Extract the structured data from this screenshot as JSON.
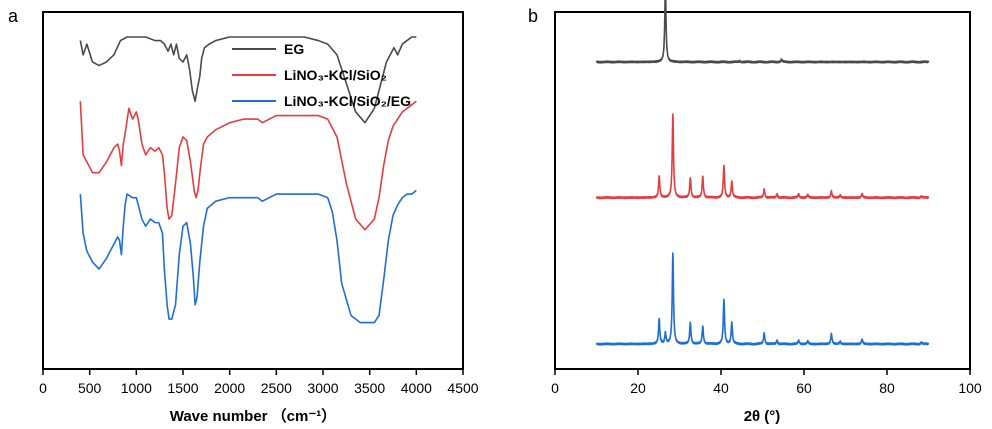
{
  "chart_data": [
    {
      "panel_label": "a",
      "type": "line",
      "xlabel": "Wave number （cm⁻¹）",
      "ylabel": "",
      "xlim": [
        0,
        4500
      ],
      "xticks": [
        0,
        500,
        1000,
        1500,
        2000,
        2500,
        3000,
        3500,
        4000,
        4500
      ],
      "ylim": [
        0,
        100
      ],
      "yticks": [],
      "grid": false,
      "legend_position": "top",
      "series": [
        {
          "name": "EG",
          "color": "#4a4a4a",
          "points": [
            [
              400,
              92
            ],
            [
              430,
              88
            ],
            [
              470,
              91
            ],
            [
              530,
              86
            ],
            [
              600,
              85
            ],
            [
              680,
              86
            ],
            [
              760,
              88
            ],
            [
              830,
              92
            ],
            [
              900,
              93
            ],
            [
              1000,
              93
            ],
            [
              1100,
              93
            ],
            [
              1200,
              92
            ],
            [
              1260,
              92
            ],
            [
              1300,
              91
            ],
            [
              1340,
              89
            ],
            [
              1370,
              91
            ],
            [
              1400,
              88
            ],
            [
              1430,
              91
            ],
            [
              1460,
              87
            ],
            [
              1500,
              86
            ],
            [
              1540,
              88
            ],
            [
              1570,
              84
            ],
            [
              1600,
              78
            ],
            [
              1630,
              75
            ],
            [
              1650,
              78
            ],
            [
              1680,
              82
            ],
            [
              1700,
              87
            ],
            [
              1730,
              90
            ],
            [
              1780,
              91
            ],
            [
              1850,
              92
            ],
            [
              2000,
              93
            ],
            [
              2200,
              93
            ],
            [
              2500,
              93
            ],
            [
              2800,
              93
            ],
            [
              2950,
              92
            ],
            [
              3050,
              91
            ],
            [
              3150,
              88
            ],
            [
              3250,
              80
            ],
            [
              3350,
              72
            ],
            [
              3450,
              69
            ],
            [
              3550,
              73
            ],
            [
              3620,
              80
            ],
            [
              3680,
              86
            ],
            [
              3720,
              88
            ],
            [
              3760,
              90
            ],
            [
              3800,
              88
            ],
            [
              3850,
              91
            ],
            [
              3900,
              92
            ],
            [
              3950,
              93
            ],
            [
              4000,
              93
            ]
          ]
        },
        {
          "name": "LiNO₃-KCl/SiO₂",
          "color": "#e43d40",
          "points": [
            [
              400,
              75
            ],
            [
              430,
              60
            ],
            [
              470,
              58
            ],
            [
              530,
              55
            ],
            [
              600,
              55
            ],
            [
              680,
              58
            ],
            [
              760,
              62
            ],
            [
              800,
              63
            ],
            [
              820,
              61
            ],
            [
              840,
              57
            ],
            [
              860,
              63
            ],
            [
              880,
              66
            ],
            [
              920,
              73
            ],
            [
              960,
              70
            ],
            [
              1000,
              72
            ],
            [
              1020,
              70
            ],
            [
              1060,
              63
            ],
            [
              1100,
              60
            ],
            [
              1150,
              62
            ],
            [
              1200,
              61
            ],
            [
              1240,
              62
            ],
            [
              1280,
              60
            ],
            [
              1300,
              55
            ],
            [
              1330,
              45
            ],
            [
              1350,
              42
            ],
            [
              1380,
              43
            ],
            [
              1420,
              52
            ],
            [
              1460,
              62
            ],
            [
              1500,
              65
            ],
            [
              1540,
              64
            ],
            [
              1580,
              58
            ],
            [
              1620,
              50
            ],
            [
              1640,
              48
            ],
            [
              1660,
              50
            ],
            [
              1690,
              57
            ],
            [
              1720,
              63
            ],
            [
              1760,
              65
            ],
            [
              1850,
              67
            ],
            [
              2000,
              69
            ],
            [
              2150,
              70
            ],
            [
              2300,
              70
            ],
            [
              2350,
              69
            ],
            [
              2500,
              71
            ],
            [
              2800,
              71
            ],
            [
              2950,
              71
            ],
            [
              3050,
              70
            ],
            [
              3150,
              65
            ],
            [
              3250,
              52
            ],
            [
              3350,
              42
            ],
            [
              3450,
              39
            ],
            [
              3550,
              42
            ],
            [
              3600,
              48
            ],
            [
              3650,
              57
            ],
            [
              3700,
              64
            ],
            [
              3750,
              68
            ],
            [
              3800,
              70
            ],
            [
              3850,
              72
            ],
            [
              3900,
              73
            ],
            [
              3950,
              74
            ],
            [
              4000,
              75
            ]
          ]
        },
        {
          "name": "LiNO₃-KCl/SiO₂/EG",
          "color": "#1f6ed4",
          "points": [
            [
              400,
              49
            ],
            [
              430,
              38
            ],
            [
              470,
              33
            ],
            [
              530,
              30
            ],
            [
              600,
              28
            ],
            [
              680,
              31
            ],
            [
              760,
              35
            ],
            [
              800,
              37
            ],
            [
              820,
              36
            ],
            [
              840,
              32
            ],
            [
              860,
              40
            ],
            [
              880,
              46
            ],
            [
              900,
              49
            ],
            [
              960,
              48
            ],
            [
              1000,
              48
            ],
            [
              1020,
              46
            ],
            [
              1060,
              42
            ],
            [
              1100,
              40
            ],
            [
              1150,
              42
            ],
            [
              1200,
              41
            ],
            [
              1240,
              41
            ],
            [
              1280,
              38
            ],
            [
              1300,
              28
            ],
            [
              1330,
              18
            ],
            [
              1350,
              14
            ],
            [
              1380,
              14
            ],
            [
              1420,
              18
            ],
            [
              1460,
              32
            ],
            [
              1500,
              40
            ],
            [
              1540,
              41
            ],
            [
              1580,
              35
            ],
            [
              1610,
              26
            ],
            [
              1630,
              18
            ],
            [
              1650,
              20
            ],
            [
              1680,
              30
            ],
            [
              1720,
              40
            ],
            [
              1760,
              45
            ],
            [
              1850,
              47
            ],
            [
              2000,
              48
            ],
            [
              2150,
              48
            ],
            [
              2300,
              48
            ],
            [
              2350,
              47
            ],
            [
              2500,
              49
            ],
            [
              2800,
              49
            ],
            [
              2950,
              49
            ],
            [
              3050,
              48
            ],
            [
              3100,
              44
            ],
            [
              3150,
              36
            ],
            [
              3200,
              24
            ],
            [
              3300,
              15
            ],
            [
              3400,
              13
            ],
            [
              3500,
              13
            ],
            [
              3550,
              13
            ],
            [
              3600,
              15
            ],
            [
              3650,
              25
            ],
            [
              3700,
              36
            ],
            [
              3750,
              43
            ],
            [
              3800,
              46
            ],
            [
              3850,
              48
            ],
            [
              3900,
              49
            ],
            [
              3950,
              49
            ],
            [
              4000,
              50
            ]
          ]
        }
      ]
    },
    {
      "panel_label": "b",
      "type": "line",
      "xlabel": "2θ (°)",
      "ylabel": "",
      "xlim": [
        0,
        100
      ],
      "xticks": [
        0,
        20,
        40,
        60,
        80,
        100
      ],
      "ylim": [
        0,
        100
      ],
      "yticks": [],
      "grid": false,
      "series": [
        {
          "name": "",
          "color": "#4a4a4a",
          "baseline": 86,
          "peaks": [
            [
              26.6,
              21
            ],
            [
              54.6,
              0.7
            ],
            [
              44.5,
              0.3
            ]
          ]
        },
        {
          "name": "",
          "color": "#e43d40",
          "baseline": 48,
          "peaks": [
            [
              25.1,
              6
            ],
            [
              28.4,
              23.5
            ],
            [
              32.6,
              5.5
            ],
            [
              35.6,
              6
            ],
            [
              40.7,
              9
            ],
            [
              42.6,
              4.5
            ],
            [
              50.4,
              2.3
            ],
            [
              53.5,
              1
            ],
            [
              58.7,
              1
            ],
            [
              60.9,
              0.8
            ],
            [
              66.6,
              1.8
            ],
            [
              68.7,
              0.7
            ],
            [
              74.0,
              1.1
            ],
            [
              88.3,
              0.4
            ]
          ]
        },
        {
          "name": "",
          "color": "#1f6ed4",
          "baseline": 7,
          "peaks": [
            [
              25.1,
              7
            ],
            [
              26.6,
              3
            ],
            [
              28.4,
              25.5
            ],
            [
              32.6,
              6
            ],
            [
              35.6,
              5
            ],
            [
              40.7,
              12.5
            ],
            [
              42.6,
              6
            ],
            [
              50.4,
              3
            ],
            [
              53.5,
              1
            ],
            [
              58.7,
              1
            ],
            [
              60.9,
              0.8
            ],
            [
              66.6,
              2.8
            ],
            [
              68.7,
              0.7
            ],
            [
              74.0,
              1.3
            ],
            [
              88.3,
              0.5
            ]
          ]
        }
      ]
    }
  ]
}
